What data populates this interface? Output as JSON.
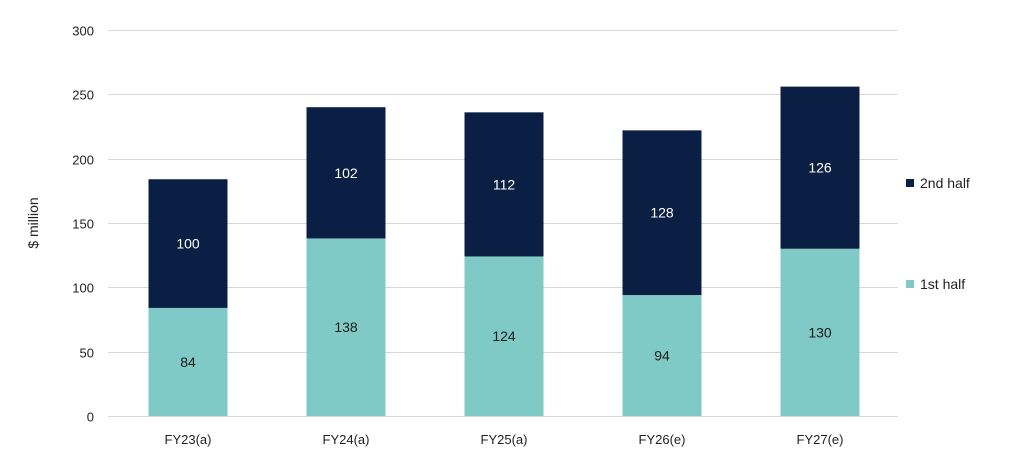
{
  "chart_data": {
    "type": "bar",
    "stacked": true,
    "categories": [
      "FY23(a)",
      "FY24(a)",
      "FY25(a)",
      "FY26(e)",
      "FY27(e)"
    ],
    "series": [
      {
        "name": "1st half",
        "values": [
          84,
          138,
          124,
          94,
          130
        ],
        "color": "#7fcac6",
        "label_color": "#1a1a1a"
      },
      {
        "name": "2nd half",
        "values": [
          100,
          102,
          112,
          128,
          126
        ],
        "color": "#0b1f45",
        "label_color": "#ffffff"
      }
    ],
    "ylabel": "$ million",
    "ylim": [
      0,
      300
    ],
    "yticks": [
      0,
      50,
      100,
      150,
      200,
      250,
      300
    ],
    "grid": true,
    "legend_position": "right",
    "legend_order": [
      "2nd half",
      "1st half"
    ]
  }
}
